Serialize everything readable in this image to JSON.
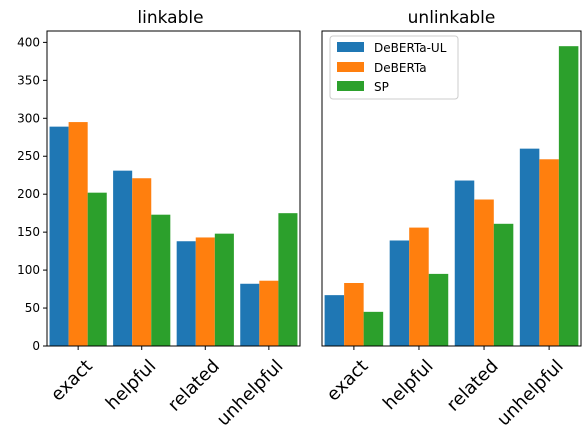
{
  "chart_data": [
    {
      "type": "bar",
      "title": "linkable",
      "categories": [
        "exact",
        "helpful",
        "related",
        "unhelpful"
      ],
      "ylim": [
        0,
        415
      ],
      "yticks": [
        0,
        50,
        100,
        150,
        200,
        250,
        300,
        350,
        400
      ],
      "series": [
        {
          "name": "DeBERTa-UL",
          "color": "#1f77b4",
          "values": [
            289,
            231,
            138,
            82
          ]
        },
        {
          "name": "DeBERTa",
          "color": "#ff7f0e",
          "values": [
            295,
            221,
            143,
            86
          ]
        },
        {
          "name": "SP",
          "color": "#2ca02c",
          "values": [
            202,
            173,
            148,
            175
          ]
        }
      ]
    },
    {
      "type": "bar",
      "title": "unlinkable",
      "categories": [
        "exact",
        "helpful",
        "related",
        "unhelpful"
      ],
      "ylim": [
        0,
        415
      ],
      "legend": "top-left",
      "series": [
        {
          "name": "DeBERTa-UL",
          "color": "#1f77b4",
          "values": [
            67,
            139,
            218,
            260
          ]
        },
        {
          "name": "DeBERTa",
          "color": "#ff7f0e",
          "values": [
            83,
            156,
            193,
            246
          ]
        },
        {
          "name": "SP",
          "color": "#2ca02c",
          "values": [
            45,
            95,
            161,
            395
          ]
        }
      ]
    }
  ]
}
